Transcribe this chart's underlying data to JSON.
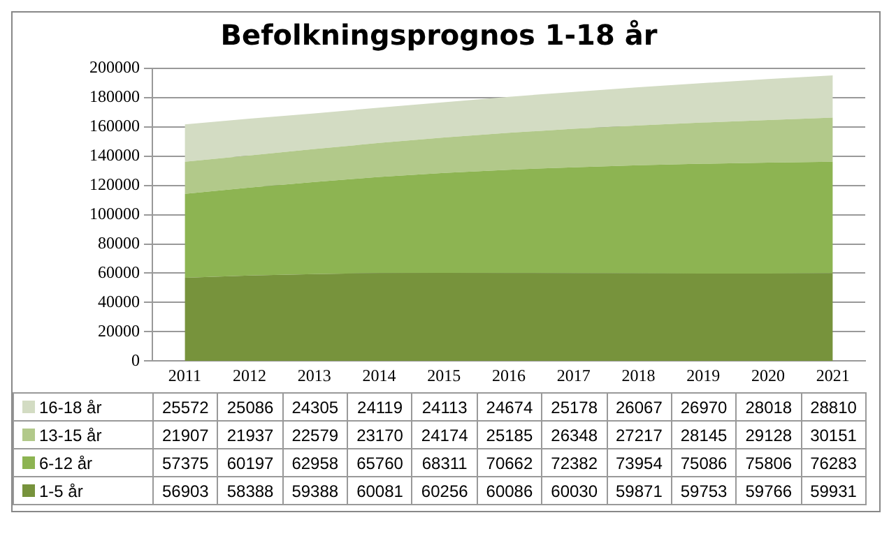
{
  "chart_data": {
    "type": "area",
    "title": "Befolkningsprognos 1-18 år",
    "categories": [
      "2011",
      "2012",
      "2013",
      "2014",
      "2015",
      "2016",
      "2017",
      "2018",
      "2019",
      "2020",
      "2021"
    ],
    "stacked": true,
    "series": [
      {
        "name": "1-5 år",
        "color": "#77933c",
        "values": [
          56903,
          58388,
          59388,
          60081,
          60256,
          60086,
          60030,
          59871,
          59753,
          59766,
          59931
        ]
      },
      {
        "name": "6-12 år",
        "color": "#8db452",
        "values": [
          57375,
          60197,
          62958,
          65760,
          68311,
          70662,
          72382,
          73954,
          75086,
          75806,
          76283
        ]
      },
      {
        "name": "13-15 år",
        "color": "#b2c98a",
        "values": [
          21907,
          21937,
          22579,
          23170,
          24174,
          25185,
          26348,
          27217,
          28145,
          29128,
          30151
        ]
      },
      {
        "name": "16-18 år",
        "color": "#d3dcc3",
        "values": [
          25572,
          25086,
          24305,
          24119,
          24113,
          24674,
          25178,
          26067,
          26970,
          28018,
          28810
        ]
      }
    ],
    "ylim": [
      0,
      200000
    ],
    "yticks": [
      0,
      20000,
      40000,
      60000,
      80000,
      100000,
      120000,
      140000,
      160000,
      180000,
      200000
    ],
    "grid": "y",
    "legend": "bottom",
    "data_labels": true
  }
}
